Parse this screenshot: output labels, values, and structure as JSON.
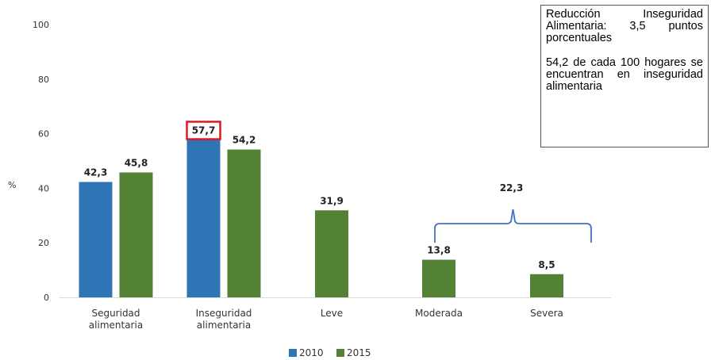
{
  "chart_data": {
    "type": "bar",
    "ylabel": "%",
    "ylim": [
      0,
      100
    ],
    "yticks": [
      "0",
      "20",
      "40",
      "60",
      "80",
      "100"
    ],
    "categories": [
      [
        "Seguridad",
        "alimentaria"
      ],
      [
        "Inseguridad",
        "alimentaria"
      ],
      [
        "Leve"
      ],
      [
        "Moderada"
      ],
      [
        "Severa"
      ]
    ],
    "series": [
      {
        "name": "2010",
        "color": "#2e75b6",
        "values": [
          42.3,
          57.7,
          null,
          null,
          null
        ],
        "labels": [
          "42,3",
          "57,7",
          "",
          "",
          ""
        ]
      },
      {
        "name": "2015",
        "color": "#548235",
        "values": [
          45.8,
          54.2,
          31.9,
          13.8,
          8.5
        ],
        "labels": [
          "45,8",
          "54,2",
          "31,9",
          "13,8",
          "8,5"
        ]
      }
    ],
    "highlight": {
      "series": 0,
      "index": 1,
      "color": "#e0181e"
    },
    "bracket": {
      "label": "22,3",
      "color": "#4472c4"
    },
    "legend_position": "bottom",
    "grid": false
  },
  "annotation": {
    "lines": [
      "Reducción Inseguridad Alimentaria: 3,5 puntos porcentuales",
      "54,2 de cada 100 hogares se encuentran en inseguridad alimentaria"
    ]
  }
}
